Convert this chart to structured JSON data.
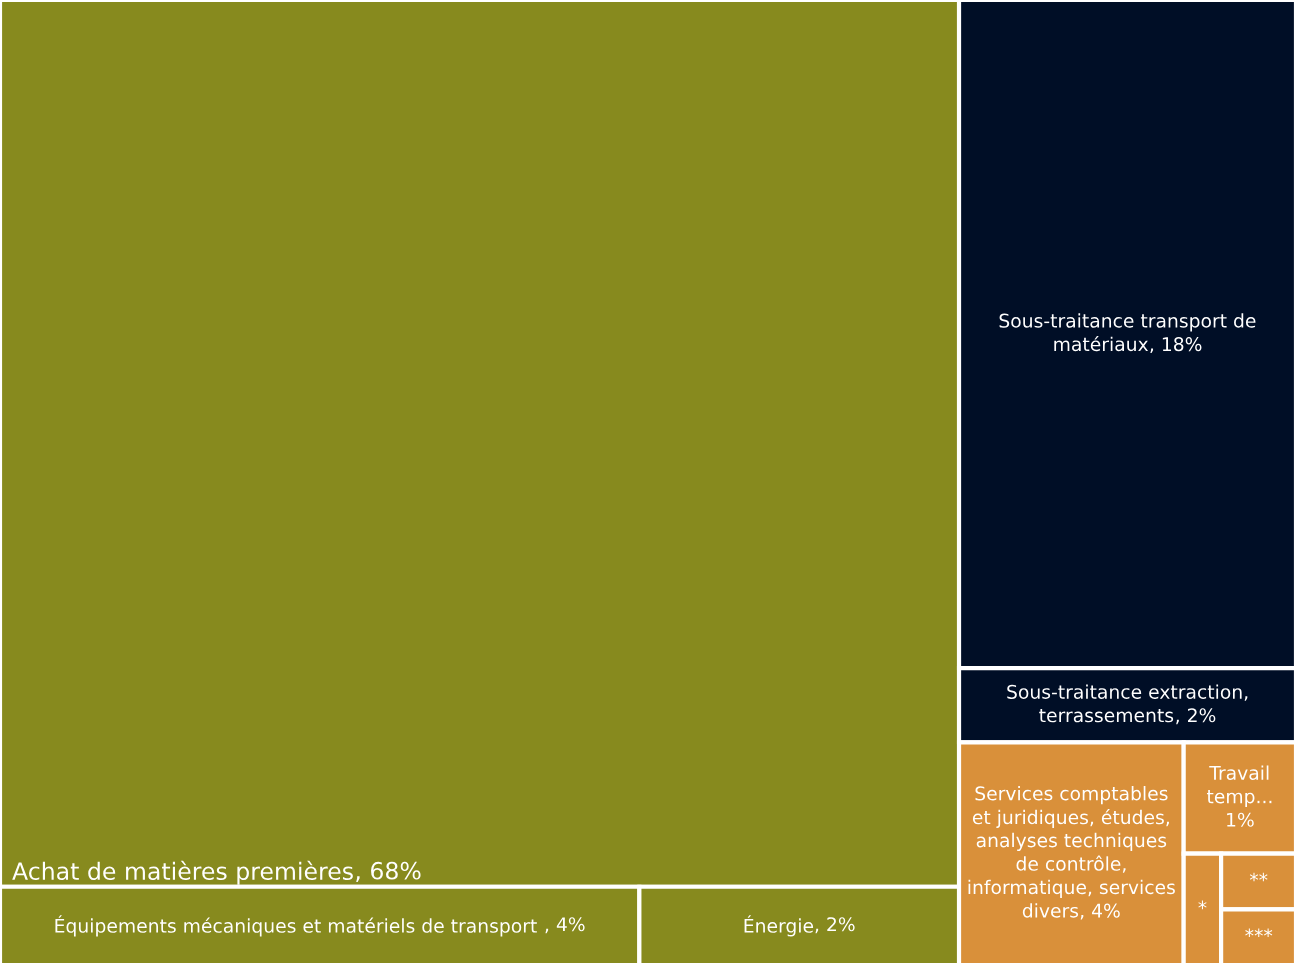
{
  "chart_data": {
    "type": "other",
    "categories": [
      "Achat de matières premières",
      "Équipements mécaniques et matériels de transport ",
      "Énergie",
      "Sous-traitance transport de matériaux",
      "Sous-traitance extraction, terrassements",
      "Services comptables et juridiques, études, analyses techniques de contrôle, informatique, services divers",
      "Travail temp...",
      "*",
      "**",
      "***"
    ],
    "values": [
      68,
      4,
      2,
      18,
      2,
      4,
      1,
      null,
      null,
      null
    ],
    "value_labels": [
      ", 68%",
      ", 4%",
      ", 2%",
      ", 18%",
      ", 2%",
      ", 4%",
      "1%",
      null,
      null,
      null
    ],
    "colors": [
      "#878a1e",
      "#878a1e",
      "#878a1e",
      "#000e26",
      "#000e26",
      "#d9903a",
      "#d9903a",
      "#d9903a",
      "#d9903a",
      "#d9903a"
    ]
  }
}
